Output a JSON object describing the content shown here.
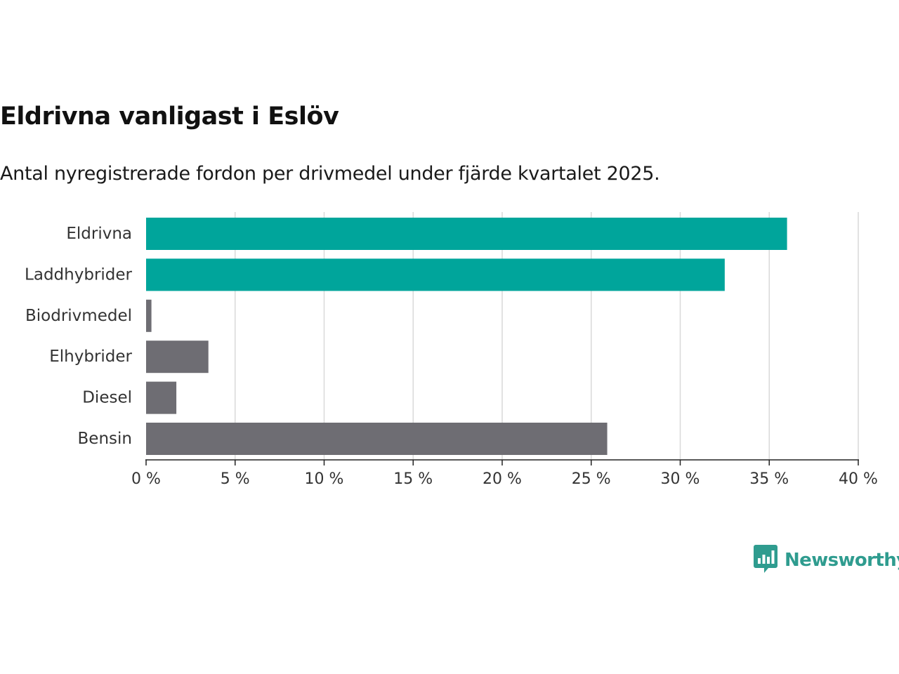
{
  "title": "Eldrivna vanligast i Eslöv",
  "subtitle": "Antal nyregistrerade fordon per drivmedel under fjärde kvartalet 2025.",
  "logo": {
    "text": "Newsworthy",
    "icon": "newsworthy-logo-icon"
  },
  "colors": {
    "highlight": "#00a59b",
    "muted": "#6e6d73",
    "grid": "#d9d9d9",
    "axis": "#222222",
    "brand": "#2f9c8f"
  },
  "chart_data": {
    "type": "bar",
    "orientation": "horizontal",
    "title": "Eldrivna vanligast i Eslöv",
    "subtitle": "Antal nyregistrerade fordon per drivmedel under fjärde kvartalet 2025.",
    "xlabel": "",
    "ylabel": "",
    "xlim": [
      0,
      40
    ],
    "x_ticks": [
      0,
      5,
      10,
      15,
      20,
      25,
      30,
      35,
      40
    ],
    "tick_suffix": " %",
    "grid": true,
    "categories": [
      "Eldrivna",
      "Laddhybrider",
      "Biodrivmedel",
      "Elhybrider",
      "Diesel",
      "Bensin"
    ],
    "values": [
      36.0,
      32.5,
      0.3,
      3.5,
      1.7,
      25.9
    ],
    "highlight": [
      true,
      true,
      false,
      false,
      false,
      false
    ]
  }
}
